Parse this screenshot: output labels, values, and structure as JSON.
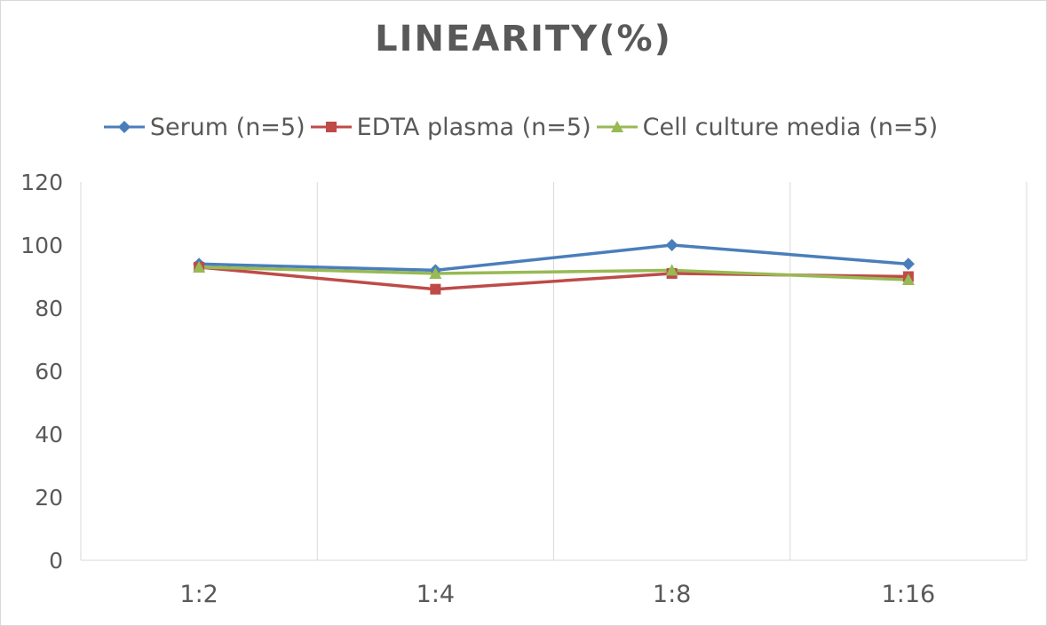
{
  "chart_data": {
    "type": "line",
    "title": "LINEARITY(%)",
    "categories": [
      "1:2",
      "1:4",
      "1:8",
      "1:16"
    ],
    "series": [
      {
        "name": "Serum (n=5)",
        "values": [
          94,
          92,
          100,
          94
        ],
        "color": "#4a7ebb",
        "marker": "diamond"
      },
      {
        "name": "EDTA plasma (n=5)",
        "values": [
          93,
          86,
          91,
          90
        ],
        "color": "#be4b48",
        "marker": "square"
      },
      {
        "name": "Cell culture media (n=5)",
        "values": [
          93,
          91,
          92,
          89
        ],
        "color": "#98b954",
        "marker": "triangle"
      }
    ],
    "ylim": [
      0,
      120
    ],
    "yticks": [
      0,
      20,
      40,
      60,
      80,
      100,
      120
    ],
    "grid": "vertical",
    "legend": "top"
  }
}
